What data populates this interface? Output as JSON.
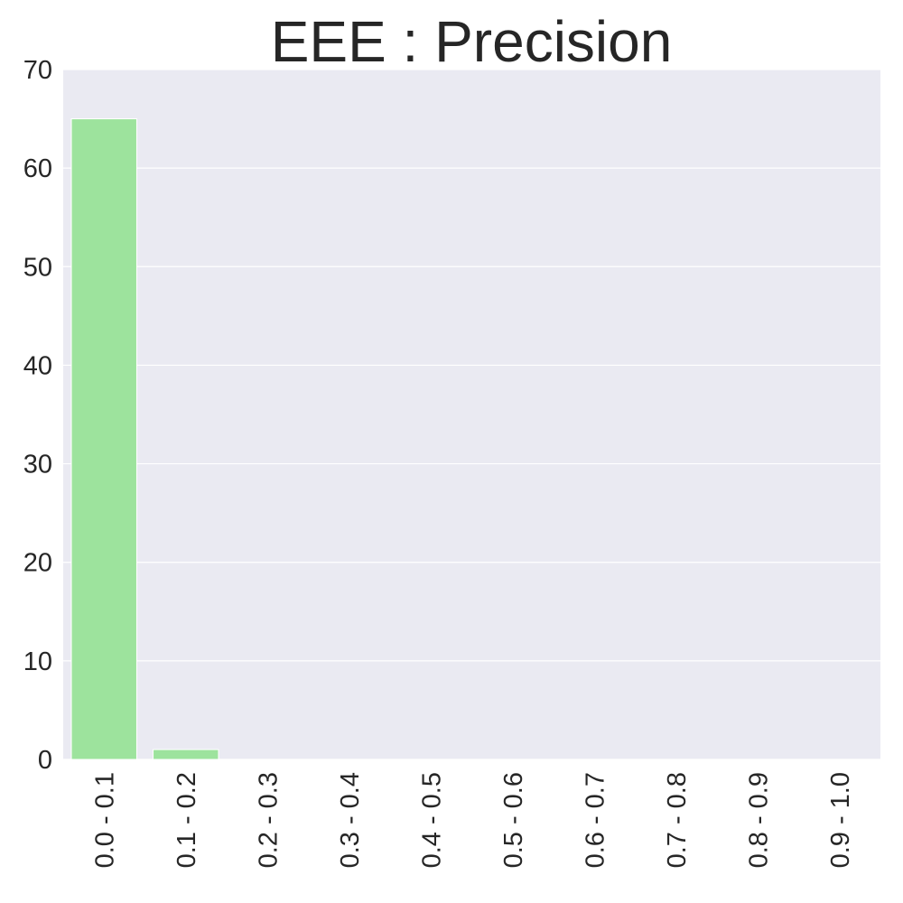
{
  "chart_data": {
    "type": "bar",
    "title": "EEE : Precision",
    "xlabel": "",
    "ylabel": "",
    "categories": [
      "0.0 - 0.1",
      "0.1 - 0.2",
      "0.2 - 0.3",
      "0.3 - 0.4",
      "0.4 - 0.5",
      "0.5 - 0.6",
      "0.6 - 0.7",
      "0.7 - 0.8",
      "0.8 - 0.9",
      "0.9 - 1.0"
    ],
    "values": [
      65,
      1,
      0,
      0,
      0,
      0,
      0,
      0,
      0,
      0
    ],
    "ylim": [
      0,
      70
    ],
    "yticks": [
      0,
      10,
      20,
      30,
      40,
      50,
      60,
      70
    ],
    "grid": true,
    "colors": {
      "bar": "#9de39d",
      "plot_background": "#eaeaf2",
      "grid": "#ffffff",
      "text": "#262626"
    }
  }
}
